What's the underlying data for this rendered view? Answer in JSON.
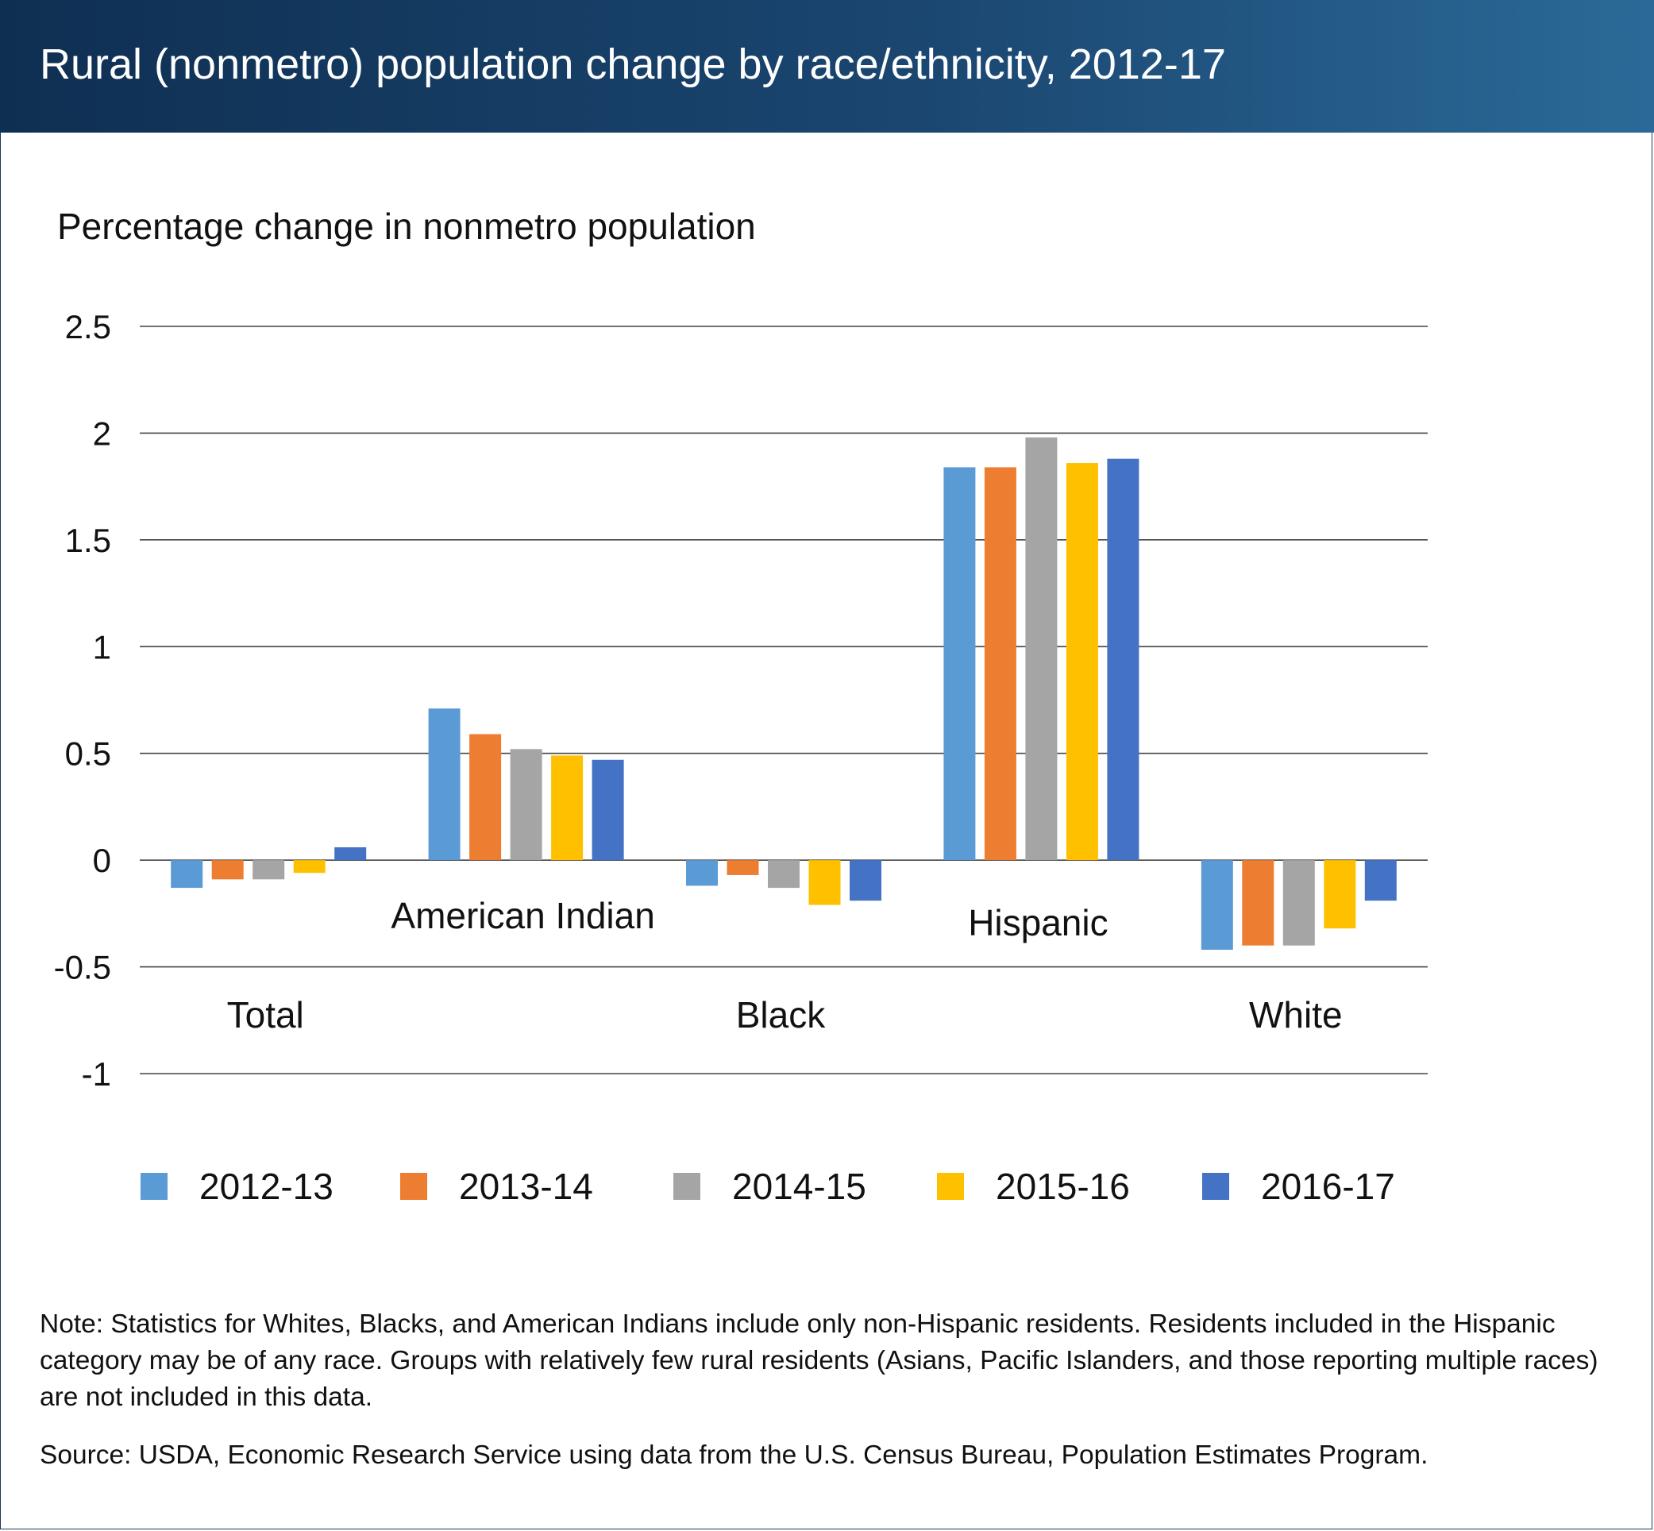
{
  "header": {
    "title": "Rural (nonmetro) population change by race/ethnicity, 2012-17"
  },
  "chart_data": {
    "type": "bar",
    "title": "Rural (nonmetro) population change by race/ethnicity, 2012-17",
    "ylabel": "Percentage change in nonmetro population",
    "xlabel": "",
    "ylim": [
      -1,
      2.5
    ],
    "yticks": [
      "2.5",
      "2",
      "1.5",
      "1",
      "0.5",
      "0",
      "-0.5",
      "-1"
    ],
    "grid": true,
    "legend_position": "bottom",
    "categories": [
      "Total",
      "American Indian",
      "Black",
      "Hispanic",
      "White"
    ],
    "series": [
      {
        "name": "2012-13",
        "color": "#5b9bd5",
        "values": [
          -0.13,
          0.71,
          -0.12,
          1.84,
          -0.42
        ]
      },
      {
        "name": "2013-14",
        "color": "#ed7d31",
        "values": [
          -0.09,
          0.59,
          -0.07,
          1.84,
          -0.4
        ]
      },
      {
        "name": "2014-15",
        "color": "#a5a5a5",
        "values": [
          -0.09,
          0.52,
          -0.13,
          1.98,
          -0.4
        ]
      },
      {
        "name": "2015-16",
        "color": "#ffc000",
        "values": [
          -0.06,
          0.49,
          -0.21,
          1.86,
          -0.32
        ]
      },
      {
        "name": "2016-17",
        "color": "#4472c4",
        "values": [
          0.06,
          0.47,
          -0.19,
          1.88,
          -0.19
        ]
      }
    ]
  },
  "footer": {
    "note": "Note: Statistics for Whites, Blacks, and American Indians include only non-Hispanic residents. Residents included in the Hispanic category may be of any race. Groups with relatively few rural residents (Asians, Pacific Islanders, and those reporting multiple races) are not included in this data.",
    "source": "Source: USDA, Economic Research Service using data from the U.S. Census Bureau, Population Estimates Program."
  }
}
